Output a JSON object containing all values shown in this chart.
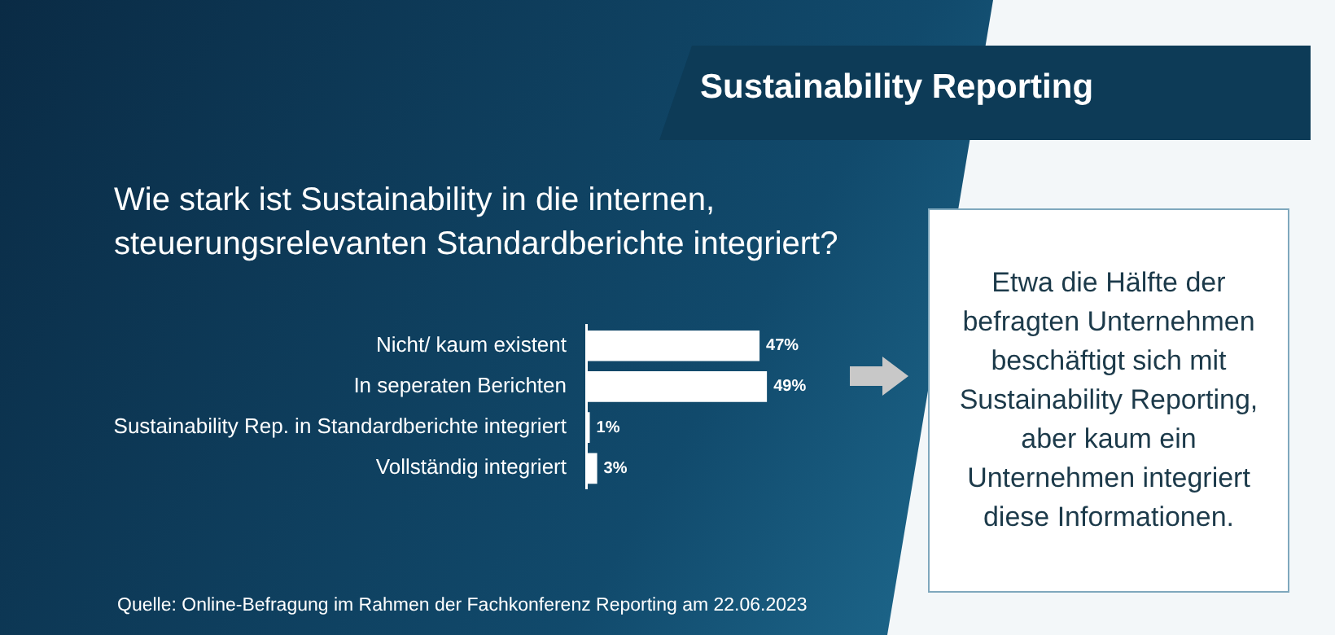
{
  "chart_data": {
    "type": "bar",
    "title": "Sustainability Reporting",
    "subtitle": "Wie stark ist Sustainability in die internen, steuerungsrelevanten Standardberichte integriert?",
    "orientation": "horizontal",
    "categories": [
      "Nicht/ kaum existent",
      "In seperaten Berichten",
      "Sustainability Rep. in Standardberichte integriert",
      "Vollständig integriert"
    ],
    "values": [
      47,
      49,
      1,
      3
    ],
    "color": "#ffffff",
    "value_labels": [
      "47%",
      "49%",
      "1%",
      "3%"
    ],
    "annotations": [
      "Etwa die Hälfte der befragten Unternehmen beschäftigt sich mit Sustainability Reporting, aber kaum ein Unternehmen integriert diese Informationen.",
      "Quelle: Online-Befragung im Rahmen der Fachkonferenz Reporting am 22.06.2023"
    ]
  }
}
